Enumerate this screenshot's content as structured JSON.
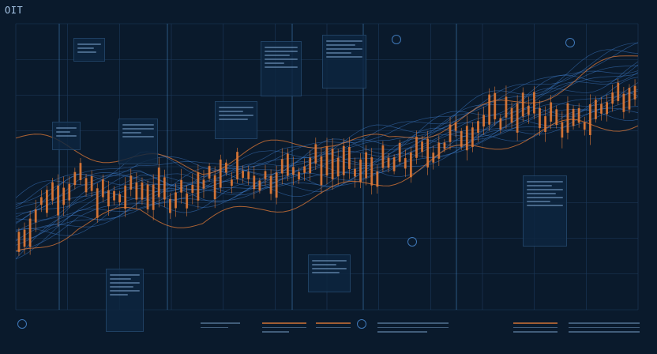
{
  "header": {
    "title": "OIT"
  },
  "axis_labels_left": [
    "",
    "",
    "",
    "",
    ""
  ],
  "chart_data": {
    "type": "line",
    "title": "OIT",
    "xlabel": "",
    "ylabel": "",
    "x_range": [
      0,
      100
    ],
    "y_range": [
      0,
      100
    ],
    "grid": true,
    "legend": "none",
    "colors": {
      "background": "#0a1a2c",
      "grid": "#1d3a5c",
      "candles": "#e07a36",
      "lines": "#3f7fd0",
      "highlight": "#5ab0ff"
    },
    "candles_trend": {
      "x": [
        0,
        5,
        10,
        15,
        20,
        25,
        30,
        35,
        40,
        45,
        50,
        55,
        60,
        65,
        70,
        75,
        80,
        85,
        90,
        95,
        100
      ],
      "y": [
        22,
        40,
        45,
        38,
        42,
        40,
        44,
        48,
        46,
        50,
        52,
        48,
        50,
        54,
        60,
        66,
        70,
        68,
        64,
        72,
        80
      ]
    },
    "series": [
      {
        "x": [
          0,
          10,
          20,
          30,
          40,
          50,
          60,
          70,
          80,
          90,
          100
        ],
        "y": [
          30,
          40,
          46,
          44,
          50,
          56,
          58,
          66,
          74,
          80,
          86
        ]
      },
      {
        "x": [
          0,
          10,
          20,
          30,
          40,
          50,
          60,
          70,
          80,
          90,
          100
        ],
        "y": [
          26,
          36,
          42,
          46,
          48,
          52,
          56,
          62,
          70,
          78,
          84
        ]
      },
      {
        "x": [
          0,
          10,
          20,
          30,
          40,
          50,
          60,
          70,
          80,
          90,
          100
        ],
        "y": [
          34,
          44,
          48,
          42,
          46,
          50,
          54,
          60,
          66,
          72,
          78
        ]
      },
      {
        "x": [
          0,
          10,
          20,
          30,
          40,
          50,
          60,
          70,
          80,
          90,
          100
        ],
        "y": [
          20,
          32,
          38,
          40,
          44,
          46,
          50,
          58,
          64,
          70,
          74
        ]
      },
      {
        "x": [
          0,
          10,
          20,
          30,
          40,
          50,
          60,
          70,
          80,
          90,
          100
        ],
        "y": [
          38,
          46,
          52,
          50,
          52,
          58,
          62,
          68,
          76,
          84,
          92
        ]
      },
      {
        "x": [
          0,
          10,
          20,
          30,
          40,
          50,
          60,
          70,
          80,
          90,
          100
        ],
        "y": [
          24,
          30,
          36,
          38,
          42,
          44,
          48,
          56,
          62,
          66,
          70
        ]
      }
    ],
    "orange_lines": [
      {
        "x": [
          0,
          10,
          20,
          30,
          40,
          50,
          60,
          70,
          80,
          90,
          100
        ],
        "y": [
          60,
          56,
          52,
          50,
          56,
          60,
          58,
          66,
          72,
          80,
          90
        ]
      },
      {
        "x": [
          0,
          10,
          20,
          30,
          40,
          50,
          60,
          70,
          80,
          90,
          100
        ],
        "y": [
          18,
          30,
          34,
          30,
          36,
          40,
          46,
          54,
          60,
          64,
          66
        ]
      }
    ]
  }
}
